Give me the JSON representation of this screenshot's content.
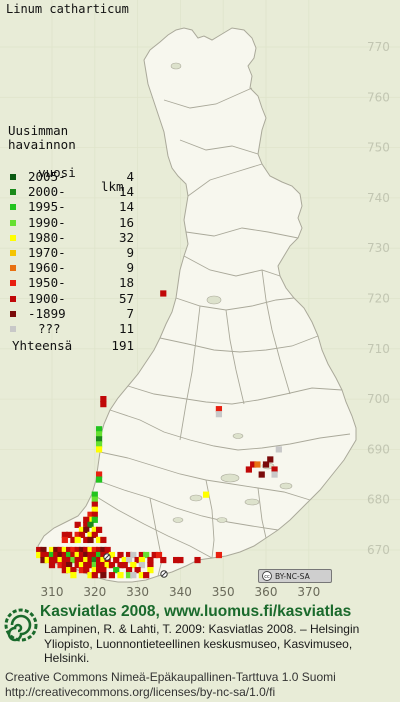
{
  "species_name": "Linum catharticum",
  "map": {
    "land_color": "#f7f7ee",
    "border_color": "#aaa99a",
    "grid_color": "#f0f0e8",
    "grid_labels_y": [
      "770",
      "760",
      "750",
      "740",
      "730",
      "720",
      "710",
      "700",
      "690",
      "680",
      "670"
    ],
    "grid_labels_x": [
      "310",
      "320",
      "330",
      "340",
      "350",
      "360",
      "370"
    ]
  },
  "legend": {
    "heading_line1": "Uusimman",
    "heading_line2": "havainnon",
    "heading_line3": "vuosi",
    "heading_count": "lkm",
    "rows": [
      {
        "label": "2005-",
        "count": "4",
        "color": "#0a5a12"
      },
      {
        "label": "2000-",
        "count": "14",
        "color": "#1a8a1a"
      },
      {
        "label": "1995-",
        "count": "14",
        "color": "#22c41e"
      },
      {
        "label": "1990-",
        "count": "16",
        "color": "#66e030"
      },
      {
        "label": "1980-",
        "count": "32",
        "color": "#ffff00"
      },
      {
        "label": "1970-",
        "count": "9",
        "color": "#f5c400"
      },
      {
        "label": "1960-",
        "count": "9",
        "color": "#e87010"
      },
      {
        "label": "1950-",
        "count": "18",
        "color": "#e82010"
      },
      {
        "label": "1900-",
        "count": "57",
        "color": "#c00808"
      },
      {
        "label": "-1899",
        "count": "7",
        "color": "#7a0a0a"
      },
      {
        "label": "???",
        "count": "11",
        "color": "#c8c8c8"
      }
    ],
    "total_label": "Yhteensä",
    "total_count": "191"
  },
  "badge": {
    "text": "BY-NC-SA"
  },
  "footer": {
    "heading": "Kasviatlas 2008, www.luomus.fi/kasviatlas",
    "citation": "Lampinen, R. & Lahti, T. 2009: Kasviatlas 2008. – Helsingin Yliopisto, Luonnontieteellinen keskusmuseo, Kasvimuseo, Helsinki.",
    "license_line1": "Creative Commons Nimeä-Epäkaupallinen-Tarttuva 1.0 Suomi",
    "license_line2": "http://creativecommons.org/licenses/by-nc-sa/1.0/fi"
  },
  "observations": [
    {
      "e": 336,
      "n": 721,
      "c": 8
    },
    {
      "e": 322,
      "n": 700,
      "c": 8
    },
    {
      "e": 322,
      "n": 699,
      "c": 8
    },
    {
      "e": 349,
      "n": 698,
      "c": 7
    },
    {
      "e": 349,
      "n": 697,
      "c": 10
    },
    {
      "e": 321,
      "n": 694,
      "c": 2
    },
    {
      "e": 321,
      "n": 693,
      "c": 3
    },
    {
      "e": 321,
      "n": 692,
      "c": 1
    },
    {
      "e": 321,
      "n": 691,
      "c": 3
    },
    {
      "e": 321,
      "n": 690,
      "c": 4
    },
    {
      "e": 363,
      "n": 690,
      "c": 10
    },
    {
      "e": 357,
      "n": 687,
      "c": 8
    },
    {
      "e": 361,
      "n": 688,
      "c": 9
    },
    {
      "e": 360,
      "n": 687,
      "c": 9
    },
    {
      "e": 358,
      "n": 687,
      "c": 6
    },
    {
      "e": 356,
      "n": 686,
      "c": 8
    },
    {
      "e": 362,
      "n": 686,
      "c": 8
    },
    {
      "e": 359,
      "n": 685,
      "c": 9
    },
    {
      "e": 362,
      "n": 685,
      "c": 10
    },
    {
      "e": 346,
      "n": 681,
      "c": 4
    },
    {
      "e": 321,
      "n": 685,
      "c": 7
    },
    {
      "e": 321,
      "n": 684,
      "c": 2
    },
    {
      "e": 320,
      "n": 681,
      "c": 2
    },
    {
      "e": 320,
      "n": 680,
      "c": 3
    },
    {
      "e": 320,
      "n": 679,
      "c": 8
    },
    {
      "e": 320,
      "n": 678,
      "c": 4
    },
    {
      "e": 319,
      "n": 677,
      "c": 7
    },
    {
      "e": 320,
      "n": 677,
      "c": 8
    },
    {
      "e": 319,
      "n": 676,
      "c": 4
    },
    {
      "e": 320,
      "n": 676,
      "c": 2
    },
    {
      "e": 318,
      "n": 676,
      "c": 8
    },
    {
      "e": 318,
      "n": 675,
      "c": 8
    },
    {
      "e": 319,
      "n": 675,
      "c": 1
    },
    {
      "e": 316,
      "n": 675,
      "c": 8
    },
    {
      "e": 317,
      "n": 674,
      "c": 4
    },
    {
      "e": 318,
      "n": 674,
      "c": 9
    },
    {
      "e": 320,
      "n": 674,
      "c": 4
    },
    {
      "e": 321,
      "n": 674,
      "c": 8
    },
    {
      "e": 313,
      "n": 673,
      "c": 8
    },
    {
      "e": 314,
      "n": 673,
      "c": 8
    },
    {
      "e": 316,
      "n": 673,
      "c": 7
    },
    {
      "e": 317,
      "n": 673,
      "c": 8
    },
    {
      "e": 319,
      "n": 673,
      "c": 4
    },
    {
      "e": 320,
      "n": 673,
      "c": 8
    },
    {
      "e": 313,
      "n": 672,
      "c": 7
    },
    {
      "e": 315,
      "n": 672,
      "c": 8
    },
    {
      "e": 316,
      "n": 672,
      "c": 4
    },
    {
      "e": 318,
      "n": 672,
      "c": 8
    },
    {
      "e": 319,
      "n": 672,
      "c": 9
    },
    {
      "e": 321,
      "n": 672,
      "c": 4
    },
    {
      "e": 322,
      "n": 672,
      "c": 8
    },
    {
      "e": 307,
      "n": 670,
      "c": 8
    },
    {
      "e": 308,
      "n": 670,
      "c": 9
    },
    {
      "e": 310,
      "n": 670,
      "c": 4
    },
    {
      "e": 311,
      "n": 670,
      "c": 9
    },
    {
      "e": 312,
      "n": 670,
      "c": 8
    },
    {
      "e": 313,
      "n": 670,
      "c": 4
    },
    {
      "e": 314,
      "n": 670,
      "c": 8
    },
    {
      "e": 315,
      "n": 670,
      "c": 7
    },
    {
      "e": 316,
      "n": 670,
      "c": 8
    },
    {
      "e": 317,
      "n": 670,
      "c": 9
    },
    {
      "e": 318,
      "n": 670,
      "c": 8
    },
    {
      "e": 319,
      "n": 670,
      "c": 4
    },
    {
      "e": 320,
      "n": 670,
      "c": 7
    },
    {
      "e": 321,
      "n": 670,
      "c": 8
    },
    {
      "e": 322,
      "n": 670,
      "c": 9
    },
    {
      "e": 323,
      "n": 670,
      "c": 8
    },
    {
      "e": 307,
      "n": 669,
      "c": 4
    },
    {
      "e": 308,
      "n": 669,
      "c": 8
    },
    {
      "e": 309,
      "n": 669,
      "c": 8
    },
    {
      "e": 310,
      "n": 669,
      "c": 2
    },
    {
      "e": 311,
      "n": 669,
      "c": 8
    },
    {
      "e": 312,
      "n": 669,
      "c": 9
    },
    {
      "e": 313,
      "n": 669,
      "c": 8
    },
    {
      "e": 314,
      "n": 669,
      "c": 2
    },
    {
      "e": 315,
      "n": 669,
      "c": 8
    },
    {
      "e": 316,
      "n": 669,
      "c": 4
    },
    {
      "e": 317,
      "n": 669,
      "c": 8
    },
    {
      "e": 318,
      "n": 669,
      "c": 9
    },
    {
      "e": 319,
      "n": 669,
      "c": 8
    },
    {
      "e": 320,
      "n": 669,
      "c": 8
    },
    {
      "e": 321,
      "n": 669,
      "c": 2
    },
    {
      "e": 322,
      "n": 669,
      "c": 8
    },
    {
      "e": 324,
      "n": 669,
      "c": 4
    },
    {
      "e": 326,
      "n": 669,
      "c": 8
    },
    {
      "e": 328,
      "n": 669,
      "c": 8
    },
    {
      "e": 329,
      "n": 669,
      "c": 10
    },
    {
      "e": 331,
      "n": 669,
      "c": 8
    },
    {
      "e": 332,
      "n": 669,
      "c": 3
    },
    {
      "e": 334,
      "n": 669,
      "c": 8
    },
    {
      "e": 335,
      "n": 669,
      "c": 7
    },
    {
      "e": 308,
      "n": 668,
      "c": 9
    },
    {
      "e": 309,
      "n": 668,
      "c": 4
    },
    {
      "e": 310,
      "n": 668,
      "c": 8
    },
    {
      "e": 311,
      "n": 668,
      "c": 8
    },
    {
      "e": 312,
      "n": 668,
      "c": 4
    },
    {
      "e": 313,
      "n": 668,
      "c": 8
    },
    {
      "e": 314,
      "n": 668,
      "c": 8
    },
    {
      "e": 315,
      "n": 668,
      "c": 3
    },
    {
      "e": 316,
      "n": 668,
      "c": 8
    },
    {
      "e": 317,
      "n": 668,
      "c": 8
    },
    {
      "e": 318,
      "n": 668,
      "c": 4
    },
    {
      "e": 319,
      "n": 668,
      "c": 8
    },
    {
      "e": 320,
      "n": 668,
      "c": 1
    },
    {
      "e": 321,
      "n": 668,
      "c": 8
    },
    {
      "e": 322,
      "n": 668,
      "c": 4
    },
    {
      "e": 323,
      "n": 668,
      "c": 8
    },
    {
      "e": 325,
      "n": 668,
      "c": 8
    },
    {
      "e": 327,
      "n": 668,
      "c": 4
    },
    {
      "e": 328,
      "n": 668,
      "c": 10
    },
    {
      "e": 330,
      "n": 668,
      "c": 8
    },
    {
      "e": 331,
      "n": 668,
      "c": 4
    },
    {
      "e": 333,
      "n": 668,
      "c": 8
    },
    {
      "e": 336,
      "n": 668,
      "c": 8
    },
    {
      "e": 339,
      "n": 668,
      "c": 8
    },
    {
      "e": 340,
      "n": 668,
      "c": 8
    },
    {
      "e": 344,
      "n": 668,
      "c": 8
    },
    {
      "e": 349,
      "n": 669,
      "c": 7
    },
    {
      "e": 310,
      "n": 667,
      "c": 8
    },
    {
      "e": 312,
      "n": 667,
      "c": 7
    },
    {
      "e": 313,
      "n": 667,
      "c": 8
    },
    {
      "e": 314,
      "n": 667,
      "c": 9
    },
    {
      "e": 316,
      "n": 667,
      "c": 8
    },
    {
      "e": 317,
      "n": 667,
      "c": 4
    },
    {
      "e": 318,
      "n": 667,
      "c": 8
    },
    {
      "e": 319,
      "n": 667,
      "c": 8
    },
    {
      "e": 320,
      "n": 667,
      "c": 3
    },
    {
      "e": 321,
      "n": 667,
      "c": 8
    },
    {
      "e": 322,
      "n": 667,
      "c": 8
    },
    {
      "e": 323,
      "n": 667,
      "c": 4
    },
    {
      "e": 324,
      "n": 667,
      "c": 8
    },
    {
      "e": 326,
      "n": 667,
      "c": 8
    },
    {
      "e": 327,
      "n": 667,
      "c": 8
    },
    {
      "e": 329,
      "n": 667,
      "c": 4
    },
    {
      "e": 331,
      "n": 667,
      "c": 10
    },
    {
      "e": 333,
      "n": 667,
      "c": 8
    },
    {
      "e": 313,
      "n": 666,
      "c": 8
    },
    {
      "e": 314,
      "n": 666,
      "c": 4
    },
    {
      "e": 315,
      "n": 666,
      "c": 8
    },
    {
      "e": 317,
      "n": 666,
      "c": 7
    },
    {
      "e": 318,
      "n": 666,
      "c": 8
    },
    {
      "e": 320,
      "n": 666,
      "c": 4
    },
    {
      "e": 321,
      "n": 666,
      "c": 8
    },
    {
      "e": 322,
      "n": 666,
      "c": 8
    },
    {
      "e": 325,
      "n": 666,
      "c": 2
    },
    {
      "e": 328,
      "n": 666,
      "c": 8
    },
    {
      "e": 330,
      "n": 666,
      "c": 8
    },
    {
      "e": 333,
      "n": 666,
      "c": 4
    },
    {
      "e": 315,
      "n": 665,
      "c": 4
    },
    {
      "e": 319,
      "n": 665,
      "c": 4
    },
    {
      "e": 320,
      "n": 665,
      "c": 8
    },
    {
      "e": 322,
      "n": 665,
      "c": 9
    },
    {
      "e": 324,
      "n": 665,
      "c": 8
    },
    {
      "e": 326,
      "n": 665,
      "c": 4
    },
    {
      "e": 328,
      "n": 665,
      "c": 3
    },
    {
      "e": 329,
      "n": 665,
      "c": 10
    },
    {
      "e": 331,
      "n": 665,
      "c": 4
    },
    {
      "e": 332,
      "n": 665,
      "c": 8
    }
  ]
}
